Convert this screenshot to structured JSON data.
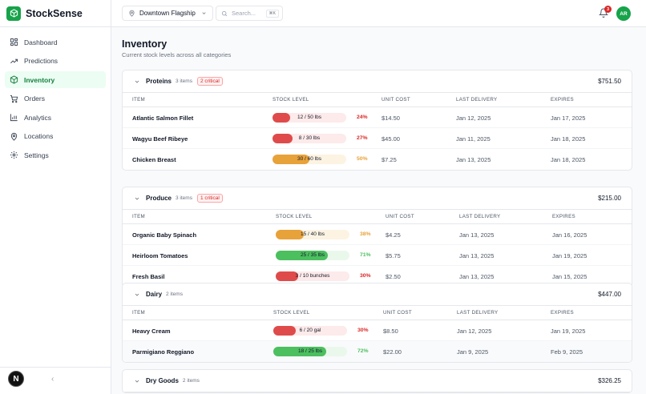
{
  "app": {
    "name": "StockSense"
  },
  "sidebar": {
    "items": [
      {
        "label": "Dashboard",
        "icon": "dashboard-icon",
        "active": false
      },
      {
        "label": "Predictions",
        "icon": "trending-up-icon",
        "active": false
      },
      {
        "label": "Inventory",
        "icon": "box-icon",
        "active": true
      },
      {
        "label": "Orders",
        "icon": "cart-icon",
        "active": false
      },
      {
        "label": "Analytics",
        "icon": "bar-chart-icon",
        "active": false
      },
      {
        "label": "Locations",
        "icon": "map-pin-icon",
        "active": false
      },
      {
        "label": "Settings",
        "icon": "gear-icon",
        "active": false
      }
    ],
    "footer_badge": "N",
    "collapse_glyph": "‹"
  },
  "header": {
    "location": "Downtown Flagship",
    "search_placeholder": "Search...",
    "search_shortcut": "⌘K",
    "notifications": "3",
    "avatar_initials": "AR"
  },
  "page": {
    "title": "Inventory",
    "subtitle": "Current stock levels across all categories"
  },
  "columns": {
    "item": "ITEM",
    "stock": "STOCK LEVEL",
    "cost": "UNIT COST",
    "delivery": "LAST DELIVERY",
    "expires": "EXPIRES"
  },
  "colors": {
    "brand": "#16a34a",
    "critical": "#dc2626",
    "warning": "#e8a23a",
    "ok": "#4cbf5f"
  },
  "categories": [
    {
      "name": "Proteins",
      "count": "3 items",
      "critical": "2 critical",
      "total": "$751.50",
      "rows": [
        {
          "item": "Atlantic Salmon Fillet",
          "stock": "12 / 50 lbs",
          "pct": "24%",
          "fill": 0.24,
          "status": "critical",
          "cost": "$14.50",
          "delivery": "Jan 12, 2025",
          "expires": "Jan 17, 2025"
        },
        {
          "item": "Wagyu Beef Ribeye",
          "stock": "8 / 30 lbs",
          "pct": "27%",
          "fill": 0.27,
          "status": "critical",
          "cost": "$45.00",
          "delivery": "Jan 11, 2025",
          "expires": "Jan 18, 2025"
        },
        {
          "item": "Chicken Breast",
          "stock": "30 / 60 lbs",
          "pct": "50%",
          "fill": 0.5,
          "status": "warning",
          "cost": "$7.25",
          "delivery": "Jan 13, 2025",
          "expires": "Jan 18, 2025"
        }
      ]
    },
    {
      "name": "Produce",
      "count": "3 items",
      "critical": "1 critical",
      "total": "$215.00",
      "rows": [
        {
          "item": "Organic Baby Spinach",
          "stock": "15 / 40 lbs",
          "pct": "38%",
          "fill": 0.38,
          "status": "warning",
          "cost": "$4.25",
          "delivery": "Jan 13, 2025",
          "expires": "Jan 16, 2025"
        },
        {
          "item": "Heirloom Tomatoes",
          "stock": "25 / 35 lbs",
          "pct": "71%",
          "fill": 0.71,
          "status": "ok",
          "cost": "$5.75",
          "delivery": "Jan 13, 2025",
          "expires": "Jan 19, 2025"
        },
        {
          "item": "Fresh Basil",
          "stock": "3 / 10 bunches",
          "pct": "30%",
          "fill": 0.3,
          "status": "critical",
          "cost": "$2.50",
          "delivery": "Jan 13, 2025",
          "expires": "Jan 15, 2025"
        }
      ]
    },
    {
      "name": "Dairy",
      "count": "2 items",
      "critical": "",
      "total": "$447.00",
      "rows": [
        {
          "item": "Heavy Cream",
          "stock": "6 / 20 gal",
          "pct": "30%",
          "fill": 0.3,
          "status": "critical",
          "cost": "$8.50",
          "delivery": "Jan 12, 2025",
          "expires": "Jan 19, 2025"
        },
        {
          "item": "Parmigiano Reggiano",
          "stock": "18 / 25 lbs",
          "pct": "72%",
          "fill": 0.72,
          "status": "ok",
          "cost": "$22.00",
          "delivery": "Jan 9, 2025",
          "expires": "Feb 9, 2025"
        }
      ]
    },
    {
      "name": "Dry Goods",
      "count": "2 items",
      "critical": "",
      "total": "$326.25",
      "rows": []
    }
  ]
}
